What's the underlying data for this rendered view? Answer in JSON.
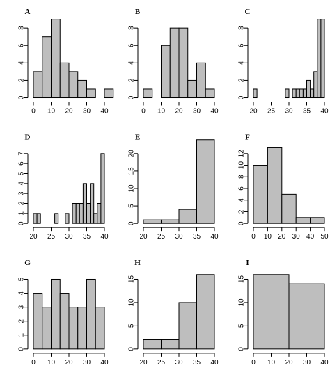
{
  "chart_data": [
    {
      "type": "bar",
      "title": "A",
      "xlabel": "",
      "ylabel": "",
      "bins": [
        [
          0,
          5
        ],
        [
          5,
          10
        ],
        [
          10,
          15
        ],
        [
          15,
          20
        ],
        [
          20,
          25
        ],
        [
          25,
          30
        ],
        [
          30,
          35
        ],
        [
          35,
          40
        ],
        [
          40,
          45
        ]
      ],
      "values": [
        3,
        7,
        9,
        4,
        3,
        2,
        1,
        0,
        1
      ],
      "xlim": [
        0,
        40
      ],
      "xticks": [
        0,
        10,
        20,
        30,
        40
      ],
      "ylim": [
        0,
        8
      ],
      "yticks": [
        0,
        2,
        4,
        6,
        8
      ],
      "grid": false
    },
    {
      "type": "bar",
      "title": "B",
      "xlabel": "",
      "ylabel": "",
      "bins": [
        [
          0,
          5
        ],
        [
          5,
          10
        ],
        [
          10,
          15
        ],
        [
          15,
          20
        ],
        [
          20,
          25
        ],
        [
          25,
          30
        ],
        [
          30,
          35
        ],
        [
          35,
          40
        ]
      ],
      "values": [
        1,
        0,
        6,
        8,
        8,
        2,
        4,
        1
      ],
      "xlim": [
        0,
        40
      ],
      "xticks": [
        0,
        10,
        20,
        30,
        40
      ],
      "ylim": [
        0,
        8
      ],
      "yticks": [
        0,
        2,
        4,
        6,
        8
      ],
      "grid": false
    },
    {
      "type": "bar",
      "title": "C",
      "xlabel": "",
      "ylabel": "",
      "bins": [
        [
          20,
          21
        ],
        [
          21,
          22
        ],
        [
          22,
          23
        ],
        [
          23,
          24
        ],
        [
          24,
          25
        ],
        [
          25,
          26
        ],
        [
          26,
          27
        ],
        [
          27,
          28
        ],
        [
          28,
          29
        ],
        [
          29,
          30
        ],
        [
          30,
          31
        ],
        [
          31,
          32
        ],
        [
          32,
          33
        ],
        [
          33,
          34
        ],
        [
          34,
          35
        ],
        [
          35,
          36
        ],
        [
          36,
          37
        ],
        [
          37,
          38
        ],
        [
          38,
          39
        ],
        [
          39,
          40
        ]
      ],
      "values": [
        1,
        0,
        0,
        0,
        0,
        0,
        0,
        0,
        0,
        1,
        0,
        1,
        1,
        1,
        1,
        2,
        1,
        3,
        9,
        9
      ],
      "xlim": [
        20,
        40
      ],
      "xticks": [
        20,
        25,
        30,
        35,
        40
      ],
      "ylim": [
        0,
        8
      ],
      "yticks": [
        0,
        2,
        4,
        6,
        8
      ],
      "grid": false
    },
    {
      "type": "bar",
      "title": "D",
      "xlabel": "",
      "ylabel": "",
      "bins": [
        [
          20,
          21
        ],
        [
          21,
          22
        ],
        [
          22,
          23
        ],
        [
          23,
          24
        ],
        [
          24,
          25
        ],
        [
          25,
          26
        ],
        [
          26,
          27
        ],
        [
          27,
          28
        ],
        [
          28,
          29
        ],
        [
          29,
          30
        ],
        [
          30,
          31
        ],
        [
          31,
          32
        ],
        [
          32,
          33
        ],
        [
          33,
          34
        ],
        [
          34,
          35
        ],
        [
          35,
          36
        ],
        [
          36,
          37
        ],
        [
          37,
          38
        ],
        [
          38,
          39
        ],
        [
          39,
          40
        ]
      ],
      "values": [
        1,
        1,
        0,
        0,
        0,
        0,
        1,
        0,
        0,
        1,
        0,
        2,
        2,
        2,
        4,
        2,
        4,
        1,
        2,
        7
      ],
      "xlim": [
        20,
        40
      ],
      "xticks": [
        20,
        25,
        30,
        35,
        40
      ],
      "ylim": [
        0,
        7
      ],
      "yticks": [
        0,
        1,
        2,
        3,
        4,
        5,
        6,
        7
      ],
      "grid": false
    },
    {
      "type": "bar",
      "title": "E",
      "xlabel": "",
      "ylabel": "",
      "bins": [
        [
          20,
          25
        ],
        [
          25,
          30
        ],
        [
          30,
          35
        ],
        [
          35,
          40
        ]
      ],
      "values": [
        1,
        1,
        4,
        24
      ],
      "xlim": [
        20,
        40
      ],
      "xticks": [
        20,
        25,
        30,
        35,
        40
      ],
      "ylim": [
        0,
        20
      ],
      "yticks": [
        0,
        5,
        10,
        15,
        20
      ],
      "grid": false
    },
    {
      "type": "bar",
      "title": "F",
      "xlabel": "",
      "ylabel": "",
      "bins": [
        [
          0,
          10
        ],
        [
          10,
          20
        ],
        [
          20,
          30
        ],
        [
          30,
          40
        ],
        [
          40,
          50
        ]
      ],
      "values": [
        10,
        13,
        5,
        1,
        1
      ],
      "xlim": [
        0,
        50
      ],
      "xticks": [
        0,
        10,
        20,
        30,
        40,
        50
      ],
      "ylim": [
        0,
        12
      ],
      "yticks": [
        0,
        2,
        4,
        6,
        8,
        10,
        12
      ],
      "grid": false
    },
    {
      "type": "bar",
      "title": "G",
      "xlabel": "",
      "ylabel": "",
      "bins": [
        [
          0,
          5
        ],
        [
          5,
          10
        ],
        [
          10,
          15
        ],
        [
          15,
          20
        ],
        [
          20,
          25
        ],
        [
          25,
          30
        ],
        [
          30,
          35
        ],
        [
          35,
          40
        ]
      ],
      "values": [
        4,
        3,
        5,
        4,
        3,
        3,
        5,
        3
      ],
      "xlim": [
        0,
        40
      ],
      "xticks": [
        0,
        10,
        20,
        30,
        40
      ],
      "ylim": [
        0,
        5
      ],
      "yticks": [
        0,
        1,
        2,
        3,
        4,
        5
      ],
      "grid": false
    },
    {
      "type": "bar",
      "title": "H",
      "xlabel": "",
      "ylabel": "",
      "bins": [
        [
          20,
          25
        ],
        [
          25,
          30
        ],
        [
          30,
          35
        ],
        [
          35,
          40
        ]
      ],
      "values": [
        2,
        2,
        10,
        16
      ],
      "xlim": [
        20,
        40
      ],
      "xticks": [
        20,
        25,
        30,
        35,
        40
      ],
      "ylim": [
        0,
        15
      ],
      "yticks": [
        0,
        5,
        10,
        15
      ],
      "grid": false
    },
    {
      "type": "bar",
      "title": "I",
      "xlabel": "",
      "ylabel": "",
      "bins": [
        [
          0,
          20
        ],
        [
          20,
          40
        ]
      ],
      "values": [
        16,
        14
      ],
      "xlim": [
        0,
        40
      ],
      "xticks": [
        0,
        10,
        20,
        30,
        40
      ],
      "ylim": [
        0,
        15
      ],
      "yticks": [
        0,
        5,
        10,
        15
      ],
      "grid": false
    }
  ]
}
